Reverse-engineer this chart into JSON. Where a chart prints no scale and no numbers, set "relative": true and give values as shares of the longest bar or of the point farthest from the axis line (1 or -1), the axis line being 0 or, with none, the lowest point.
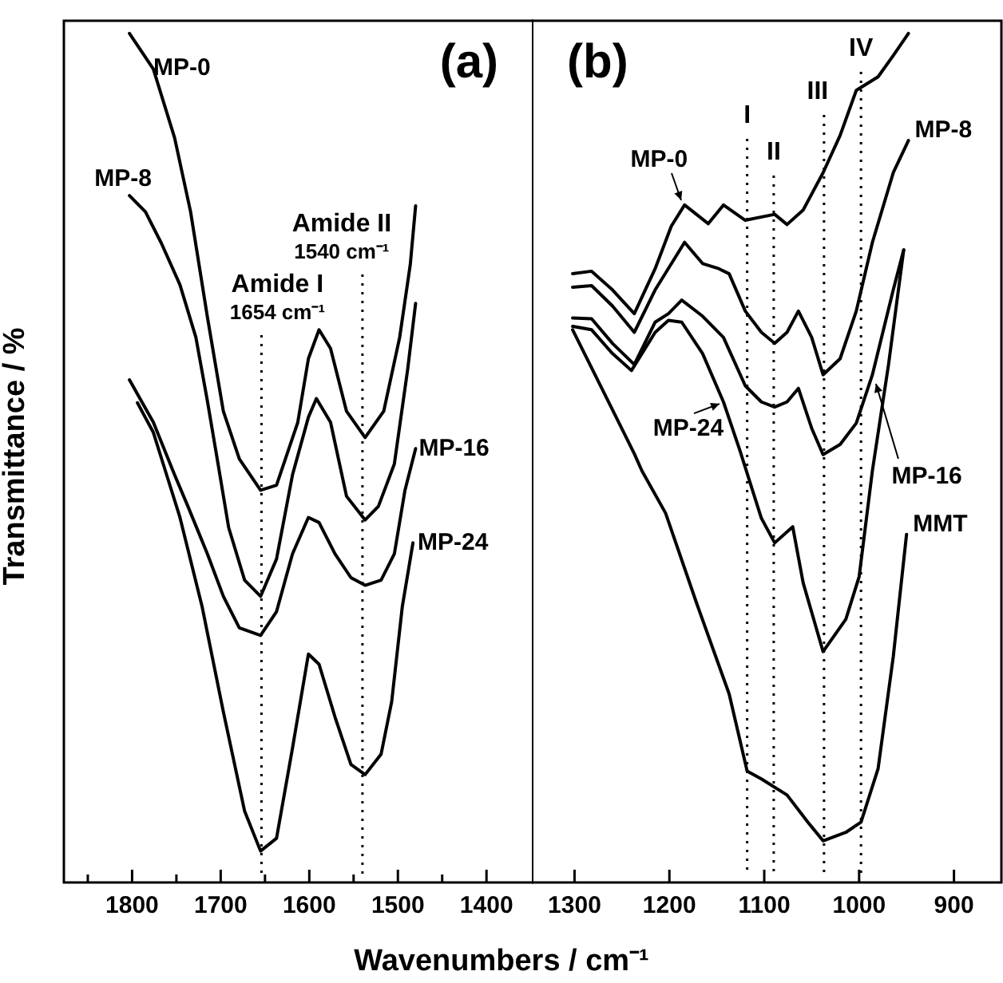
{
  "chart_data": [
    {
      "type": "line",
      "title": "(a)",
      "xlabel": "Wavenumbers / cm⁻¹",
      "ylabel": "Transmittance / %",
      "relative": true,
      "xlim": [
        1877,
        1347
      ],
      "xticks": [
        {
          "value": 1850,
          "label": null
        },
        1800,
        {
          "value": 1750,
          "label": null
        },
        1700,
        {
          "value": 1650,
          "label": null
        },
        1600,
        {
          "value": 1550,
          "label": null
        },
        1500,
        {
          "value": 1450,
          "label": null
        },
        1400
      ],
      "ref_lines": [
        {
          "axis": "x",
          "value": 1654,
          "label": "Amide I\n1654 cm⁻¹",
          "line_style": "dotted",
          "color": "#000000"
        },
        {
          "axis": "x",
          "value": 1540,
          "label": "Amide II\n1540 cm⁻¹",
          "line_style": "dotted",
          "color": "#000000"
        }
      ],
      "series": [
        {
          "name": "MP-0",
          "color": "#000000",
          "x": [
            1803,
            1776,
            1752,
            1734,
            1715,
            1697,
            1679,
            1655,
            1637,
            1613,
            1601,
            1589,
            1576,
            1558,
            1537,
            1516,
            1498,
            1486,
            1480
          ],
          "values": [
            1.0,
            0.958,
            0.877,
            0.79,
            0.666,
            0.555,
            0.499,
            0.462,
            0.468,
            0.542,
            0.617,
            0.651,
            0.629,
            0.555,
            0.524,
            0.555,
            0.642,
            0.728,
            0.797
          ]
        },
        {
          "name": "MP-8",
          "color": "#000000",
          "x": [
            1803,
            1785,
            1767,
            1746,
            1728,
            1715,
            1703,
            1691,
            1673,
            1655,
            1637,
            1619,
            1601,
            1592,
            1576,
            1558,
            1537,
            1522,
            1504,
            1489,
            1480
          ],
          "values": [
            0.809,
            0.79,
            0.753,
            0.704,
            0.642,
            0.567,
            0.493,
            0.418,
            0.356,
            0.337,
            0.381,
            0.48,
            0.548,
            0.57,
            0.542,
            0.455,
            0.427,
            0.443,
            0.493,
            0.604,
            0.682
          ]
        },
        {
          "name": "MP-16",
          "color": "#000000",
          "x": [
            1803,
            1776,
            1752,
            1737,
            1715,
            1697,
            1679,
            1655,
            1637,
            1619,
            1601,
            1589,
            1571,
            1553,
            1537,
            1519,
            1504,
            1492,
            1480
          ],
          "values": [
            0.592,
            0.542,
            0.48,
            0.443,
            0.387,
            0.337,
            0.3,
            0.291,
            0.319,
            0.387,
            0.43,
            0.424,
            0.387,
            0.359,
            0.35,
            0.356,
            0.387,
            0.462,
            0.511
          ]
        },
        {
          "name": "MP-24",
          "color": "#000000",
          "x": [
            1794,
            1776,
            1761,
            1746,
            1721,
            1697,
            1673,
            1655,
            1637,
            1619,
            1601,
            1589,
            1571,
            1553,
            1537,
            1519,
            1507,
            1495,
            1483
          ],
          "values": [
            0.565,
            0.53,
            0.48,
            0.43,
            0.325,
            0.201,
            0.084,
            0.037,
            0.052,
            0.158,
            0.269,
            0.257,
            0.195,
            0.139,
            0.127,
            0.151,
            0.213,
            0.325,
            0.4
          ]
        }
      ]
    },
    {
      "type": "line",
      "title": "(b)",
      "relative": true,
      "xlim": [
        1345,
        850
      ],
      "xticks": [
        1300,
        1200,
        1100,
        1000,
        900
      ],
      "ref_lines": [
        {
          "axis": "x",
          "value": 1118,
          "label": "I",
          "line_style": "dotted",
          "color": "#000000"
        },
        {
          "axis": "x",
          "value": 1090,
          "label": "II",
          "line_style": "dotted",
          "color": "#000000"
        },
        {
          "axis": "x",
          "value": 1037,
          "label": "III",
          "line_style": "dotted",
          "color": "#000000"
        },
        {
          "axis": "x",
          "value": 998,
          "label": "IV",
          "line_style": "dotted",
          "color": "#000000"
        }
      ],
      "series": [
        {
          "name": "MP-0",
          "color": "#000000",
          "x": [
            1302,
            1282,
            1260,
            1237,
            1215,
            1198,
            1184,
            1159,
            1143,
            1120,
            1089,
            1076,
            1059,
            1038,
            1020,
            1003,
            980,
            964,
            948
          ],
          "values": [
            0.717,
            0.72,
            0.698,
            0.67,
            0.723,
            0.773,
            0.798,
            0.776,
            0.798,
            0.78,
            0.787,
            0.775,
            0.792,
            0.836,
            0.88,
            0.933,
            0.949,
            0.974,
            1.0
          ]
        },
        {
          "name": "MP-8",
          "color": "#000000",
          "x": [
            1302,
            1282,
            1260,
            1237,
            1215,
            1184,
            1165,
            1148,
            1137,
            1120,
            1103,
            1089,
            1076,
            1064,
            1050,
            1038,
            1020,
            1003,
            986,
            964,
            948
          ],
          "values": [
            0.701,
            0.703,
            0.679,
            0.648,
            0.698,
            0.754,
            0.729,
            0.723,
            0.717,
            0.673,
            0.648,
            0.635,
            0.648,
            0.673,
            0.642,
            0.598,
            0.617,
            0.673,
            0.754,
            0.836,
            0.874
          ]
        },
        {
          "name": "MP-16",
          "color": "#000000",
          "x": [
            1302,
            1282,
            1260,
            1237,
            1215,
            1201,
            1187,
            1165,
            1143,
            1120,
            1103,
            1089,
            1076,
            1064,
            1050,
            1038,
            1020,
            1003,
            986,
            964,
            953
          ],
          "values": [
            0.665,
            0.664,
            0.635,
            0.61,
            0.66,
            0.67,
            0.686,
            0.667,
            0.642,
            0.585,
            0.566,
            0.56,
            0.566,
            0.582,
            0.535,
            0.504,
            0.516,
            0.541,
            0.598,
            0.698,
            0.745
          ]
        },
        {
          "name": "MP-24",
          "color": "#000000",
          "x": [
            1302,
            1282,
            1260,
            1240,
            1215,
            1201,
            1187,
            1165,
            1143,
            1126,
            1103,
            1089,
            1070,
            1059,
            1038,
            1014,
            1000,
            986,
            969,
            953
          ],
          "values": [
            0.655,
            0.651,
            0.623,
            0.603,
            0.648,
            0.662,
            0.66,
            0.623,
            0.566,
            0.51,
            0.429,
            0.4,
            0.419,
            0.353,
            0.272,
            0.31,
            0.36,
            0.485,
            0.61,
            0.745
          ]
        },
        {
          "name": "MMT",
          "color": "#000000",
          "x": [
            1302,
            1265,
            1237,
            1229,
            1204,
            1171,
            1137,
            1118,
            1103,
            1076,
            1054,
            1038,
            1014,
            998,
            980,
            964,
            950
          ],
          "values": [
            0.651,
            0.568,
            0.505,
            0.485,
            0.435,
            0.328,
            0.222,
            0.131,
            0.122,
            0.103,
            0.071,
            0.049,
            0.059,
            0.071,
            0.134,
            0.266,
            0.41
          ]
        }
      ]
    }
  ]
}
